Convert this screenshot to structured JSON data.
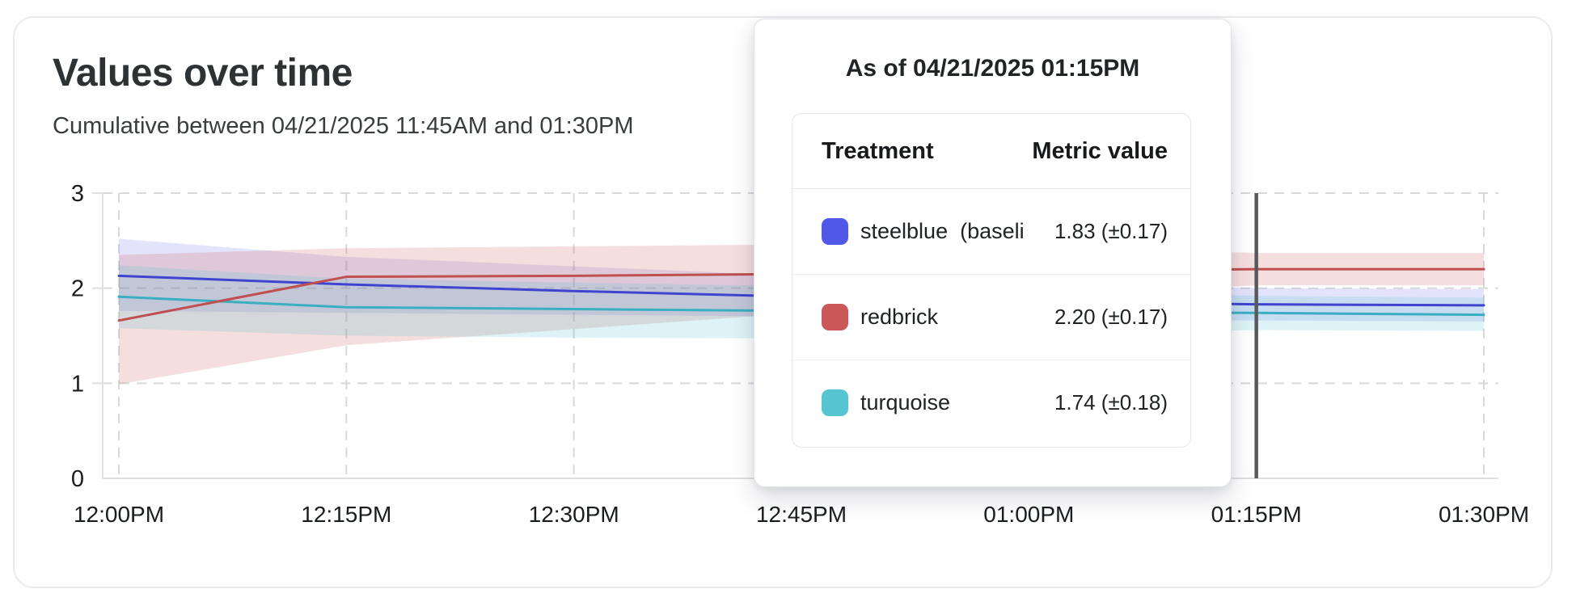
{
  "card": {
    "title": "Values over time",
    "subtitle": "Cumulative between 04/21/2025 11:45AM and 01:30PM"
  },
  "tooltip": {
    "title": "As of 04/21/2025 01:15PM",
    "columns": {
      "treatment": "Treatment",
      "metric": "Metric value"
    },
    "rows": [
      {
        "id": "steelblue-baseline",
        "name": "steelblue  (baseli",
        "value": "1.83 (±0.17)",
        "color": "#5157e6"
      },
      {
        "id": "redbrick",
        "name": "redbrick",
        "value": "2.20 (±0.17)",
        "color": "#cb5858"
      },
      {
        "id": "turquoise",
        "name": "turquoise",
        "value": "1.74 (±0.18)",
        "color": "#57c4d2"
      }
    ]
  },
  "chart_data": {
    "type": "line",
    "title": "Values over time",
    "subtitle": "Cumulative between 04/21/2025 11:45AM and 01:30PM",
    "x_labels": [
      "12:00PM",
      "12:15PM",
      "12:30PM",
      "12:45PM",
      "01:00PM",
      "01:15PM",
      "01:30PM"
    ],
    "ylim": [
      0,
      3
    ],
    "y_ticks": [
      0,
      1,
      2,
      3
    ],
    "grid": "dashed",
    "legend_position": "none",
    "crosshair_index": 5,
    "crosshair_label": "As of 04/21/2025 01:15PM",
    "series": [
      {
        "id": "steelblue-baseline",
        "name": "steelblue (baseline)",
        "line_color": "#3e44ce",
        "band_color": "rgba(88,94,233,0.17)",
        "values": [
          2.13,
          2.04,
          1.97,
          1.91,
          1.86,
          1.83,
          1.82
        ],
        "band_low": [
          1.76,
          1.74,
          1.72,
          1.7,
          1.68,
          1.66,
          1.65
        ],
        "band_high": [
          2.52,
          2.33,
          2.23,
          2.13,
          2.05,
          2.0,
          1.99
        ]
      },
      {
        "id": "redbrick",
        "name": "redbrick",
        "line_color": "#c04f4f",
        "band_color": "rgba(205,92,92,0.20)",
        "values": [
          1.66,
          2.12,
          2.13,
          2.15,
          2.18,
          2.2,
          2.2
        ],
        "band_low": [
          0.99,
          1.4,
          1.57,
          1.74,
          1.92,
          2.03,
          2.03
        ],
        "band_high": [
          2.35,
          2.42,
          2.44,
          2.46,
          2.44,
          2.37,
          2.37
        ]
      },
      {
        "id": "turquoise",
        "name": "turquoise",
        "line_color": "#3bafc2",
        "band_color": "rgba(84,197,211,0.20)",
        "values": [
          1.91,
          1.8,
          1.78,
          1.76,
          1.75,
          1.74,
          1.72
        ],
        "band_low": [
          1.58,
          1.5,
          1.48,
          1.47,
          1.5,
          1.56,
          1.55
        ],
        "band_high": [
          2.24,
          2.1,
          2.06,
          2.02,
          1.97,
          1.92,
          1.9
        ]
      }
    ],
    "colors": {
      "grid": "#d8d9db",
      "axis": "#dfe0e2",
      "crosshair": "#595a5c",
      "tick_label": "#1a1d20"
    }
  }
}
